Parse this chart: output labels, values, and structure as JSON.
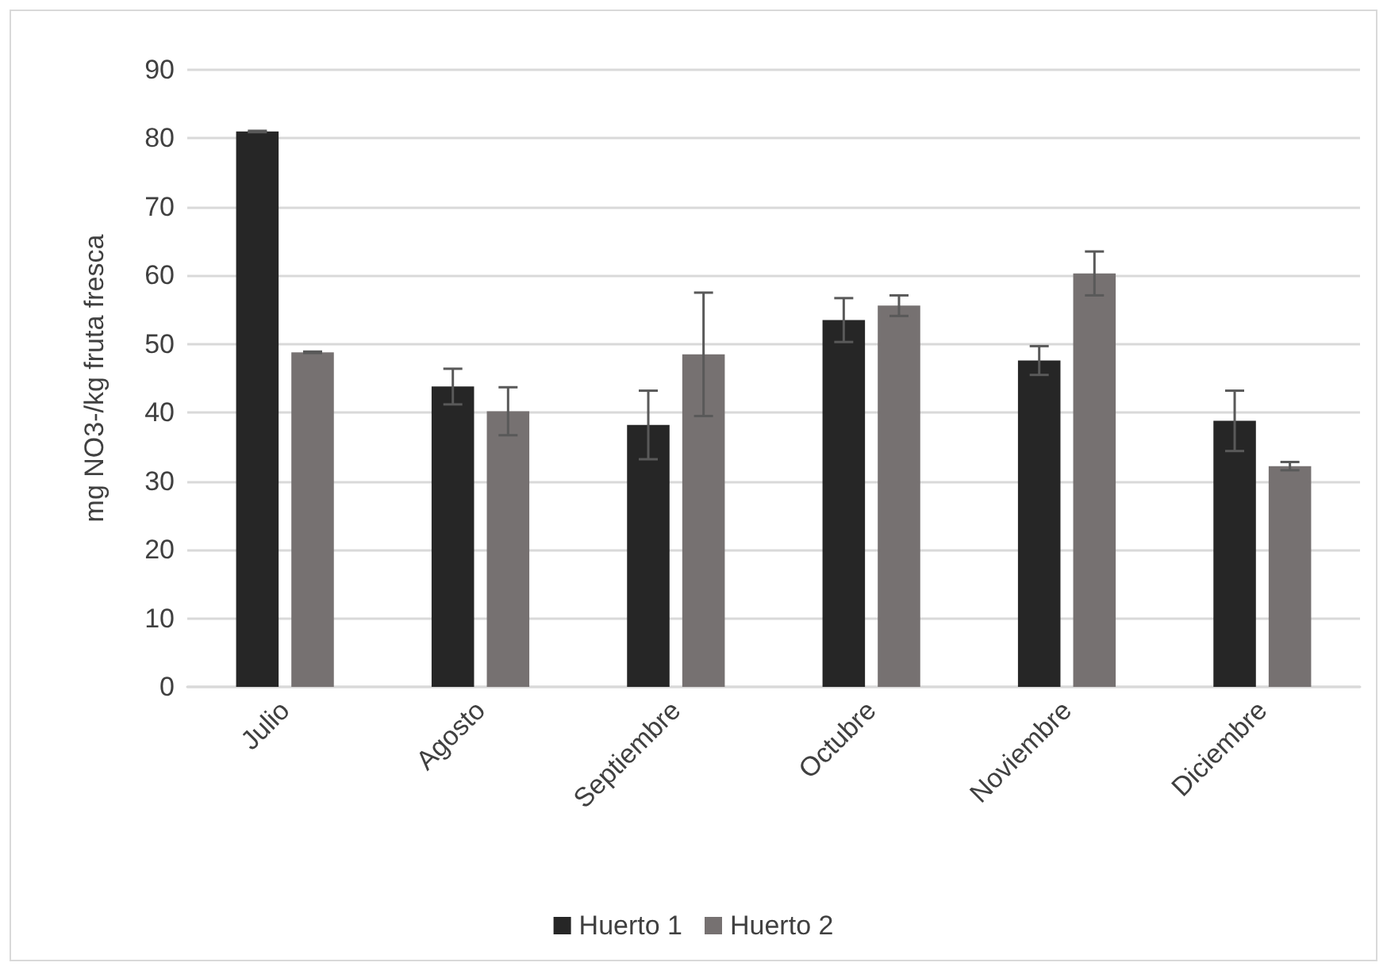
{
  "chart_data": {
    "type": "bar",
    "ylabel": "mg NO3-/kg fruta fresca",
    "categories": [
      "Julio",
      "Agosto",
      "Septiembre",
      "Octubre",
      "Noviembre",
      "Diciembre"
    ],
    "series": [
      {
        "name": "Huerto 1",
        "color": "#262626",
        "values": [
          81.0,
          43.8,
          38.2,
          53.5,
          47.6,
          38.8
        ],
        "errors": [
          0.1,
          2.6,
          5.0,
          3.2,
          2.1,
          4.4
        ]
      },
      {
        "name": "Huerto 2",
        "color": "#767171",
        "values": [
          48.8,
          40.2,
          48.5,
          55.6,
          60.3,
          32.2
        ],
        "errors": [
          0.1,
          3.5,
          9.0,
          1.5,
          3.2,
          0.6
        ]
      }
    ],
    "ylim": [
      0,
      90
    ],
    "yticks": [
      0,
      10,
      20,
      30,
      40,
      50,
      60,
      70,
      80,
      90
    ],
    "grid": "y",
    "legend": "bottom"
  }
}
